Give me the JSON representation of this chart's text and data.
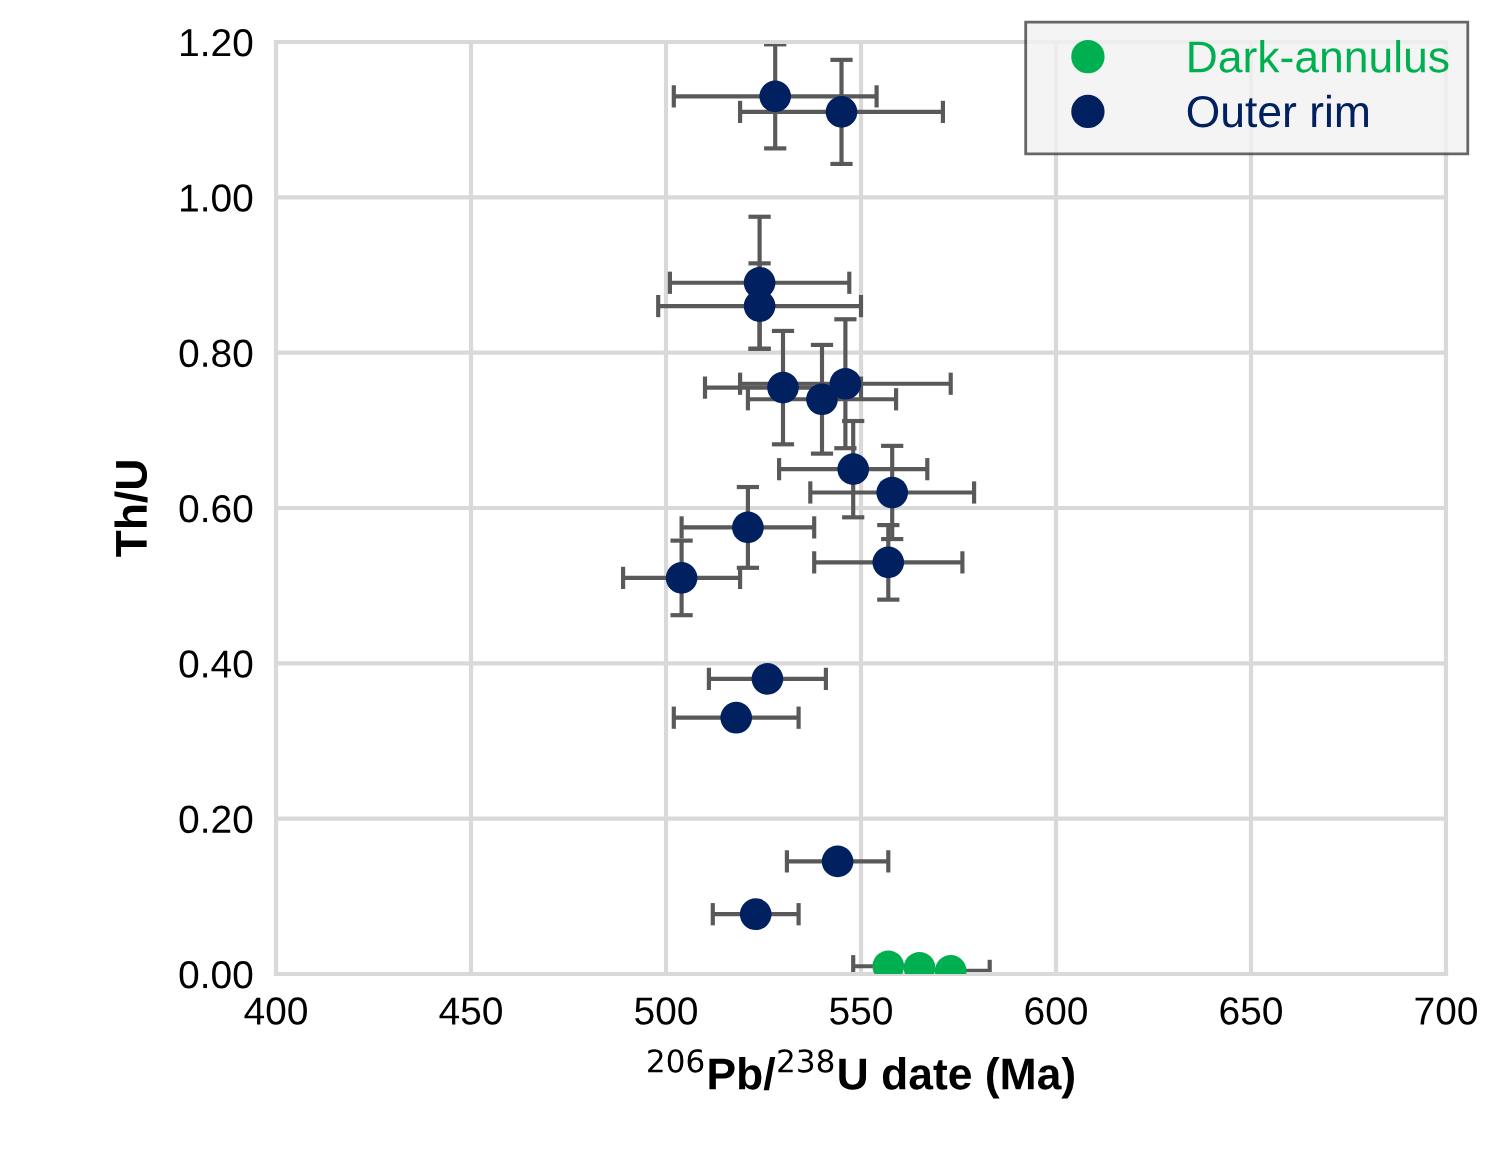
{
  "chart_data": {
    "type": "scatter",
    "xlabel": "$^{206}$Pb/$^{238}$U date (Ma)",
    "ylabel": "Th/U",
    "xlim": [
      400,
      700
    ],
    "xticks": [
      400,
      450,
      500,
      550,
      600,
      650,
      700
    ],
    "ylim": [
      0,
      1.2
    ],
    "yticks": [
      {
        "value": 0,
        "label": "0.00"
      },
      {
        "value": 0.2,
        "label": "0.20"
      },
      {
        "value": 0.4,
        "label": "0.40"
      },
      {
        "value": 0.6,
        "label": "0.60"
      },
      {
        "value": 0.8,
        "label": "0.80"
      },
      {
        "value": 1.0,
        "label": "1.00"
      },
      {
        "value": 1.2,
        "label": "1.20"
      }
    ],
    "grid": true,
    "legend": "top right",
    "marker": "circle",
    "series": [
      {
        "name": "Dark-annulus",
        "color": "#00b050",
        "x": [
          557,
          565,
          573
        ],
        "values": [
          0.01,
          0.008,
          0.004
        ],
        "xerrors": [
          9,
          null,
          10
        ],
        "errors": [
          null,
          null,
          null
        ]
      },
      {
        "name": "Outer rim",
        "color": "#002060",
        "x": [
          528,
          545,
          524,
          524,
          530,
          540,
          546,
          548,
          558,
          521,
          504,
          557,
          526,
          518,
          544,
          523
        ],
        "values": [
          1.13,
          1.11,
          0.89,
          0.86,
          0.755,
          0.74,
          0.76,
          0.65,
          0.62,
          0.575,
          0.51,
          0.53,
          0.38,
          0.33,
          0.145,
          0.077
        ],
        "xerrors": [
          26,
          26,
          23,
          26,
          20,
          19,
          27,
          19,
          21,
          17,
          15,
          19,
          15,
          16,
          13,
          11
        ],
        "errors": [
          0.067,
          0.067,
          0.085,
          0.055,
          0.073,
          0.07,
          0.083,
          0.062,
          0.06,
          0.052,
          0.048,
          0.048,
          null,
          null,
          null,
          null
        ]
      }
    ]
  }
}
